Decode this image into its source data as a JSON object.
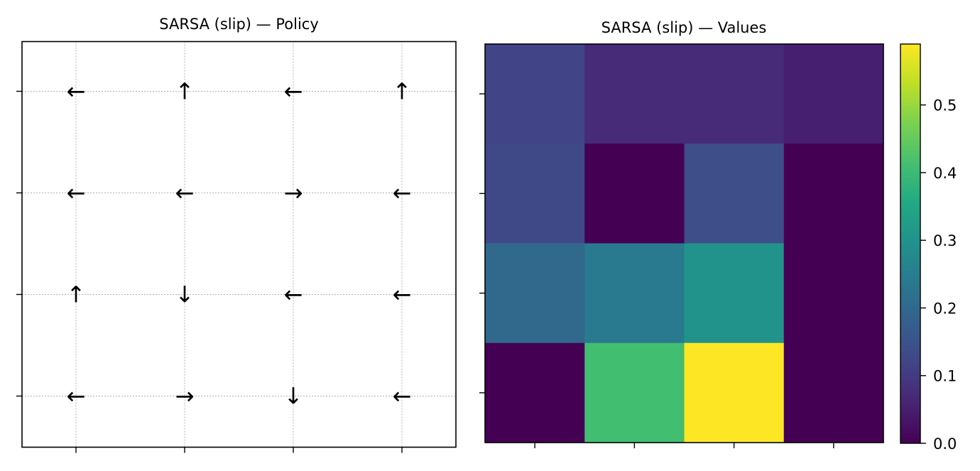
{
  "chart_data": [
    {
      "type": "table",
      "title": "SARSA (slip) — Policy",
      "rows": 4,
      "cols": 4,
      "grid": true,
      "arrows": [
        [
          "←",
          "↑",
          "←",
          "↑"
        ],
        [
          "←",
          "←",
          "→",
          "←"
        ],
        [
          "↑",
          "↓",
          "←",
          "←"
        ],
        [
          "←",
          "→",
          "↓",
          "←"
        ]
      ]
    },
    {
      "type": "heatmap",
      "title": "SARSA (slip) — Values",
      "colormap": "viridis",
      "vmin": 0.0,
      "vmax": 0.59,
      "values": [
        [
          0.12,
          0.07,
          0.07,
          0.05
        ],
        [
          0.13,
          0.0,
          0.14,
          0.0
        ],
        [
          0.2,
          0.24,
          0.3,
          0.0
        ],
        [
          0.0,
          0.41,
          0.59,
          0.0
        ]
      ],
      "colorbar": {
        "ticks": [
          0.0,
          0.1,
          0.2,
          0.3,
          0.4,
          0.5
        ],
        "tick_labels": [
          "0.0",
          "0.1",
          "0.2",
          "0.3",
          "0.4",
          "0.5"
        ],
        "placement": "right"
      }
    }
  ]
}
